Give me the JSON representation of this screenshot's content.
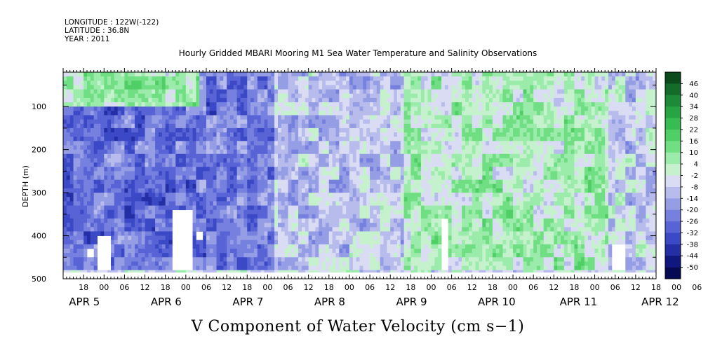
{
  "header": {
    "longitude": "LONGITUDE : 122W(-122)",
    "latitude": "LATITUDE : 36.8N",
    "year": "YEAR : 2011"
  },
  "chart_data": {
    "type": "heatmap",
    "title": "Hourly Gridded MBARI Mooring M1 Sea Water Temperature and Salinity Observations",
    "variable_label": "V Component of Water Velocity (cm s−1)",
    "ylabel": "DEPTH (m)",
    "xlabel": "",
    "y_range": [
      500,
      20
    ],
    "y_ticks": [
      100,
      200,
      300,
      400,
      500
    ],
    "x_range_hours": [
      0,
      174
    ],
    "x_start": "2011-04-05 12:00",
    "x_hour_ticks": [
      "18",
      "00",
      "06",
      "12",
      "18",
      "00",
      "06",
      "12",
      "18",
      "00",
      "06",
      "12",
      "18",
      "00",
      "06",
      "12",
      "18",
      "00",
      "06",
      "12",
      "18",
      "00",
      "06",
      "12",
      "18",
      "00",
      "06",
      "12",
      "18",
      "00",
      "06",
      "12"
    ],
    "x_day_labels": [
      "APR  5",
      "APR  6",
      "APR  7",
      "APR  8",
      "APR  9",
      "APR 10",
      "APR 11",
      "APR 12"
    ],
    "colorbar": {
      "levels": [
        "46",
        "40",
        "34",
        "28",
        "22",
        "16",
        "10",
        "4",
        "-2",
        "-8",
        "-14",
        "-20",
        "-26",
        "-32",
        "-38",
        "-44",
        "-50"
      ],
      "colors": [
        "#0b4a1b",
        "#146b2a",
        "#1c8a36",
        "#27a443",
        "#37bb53",
        "#4fcf66",
        "#70de82",
        "#9bebab",
        "#c5f2cd",
        "#d9dcf3",
        "#b7bcec",
        "#959ee5",
        "#7680de",
        "#5864d5",
        "#3b49c6",
        "#242fa6",
        "#101880",
        "#060a55"
      ],
      "min": -50,
      "max": 52
    },
    "field_description_regions": [
      {
        "t": [
          0,
          40
        ],
        "z": [
          100,
          480
        ],
        "v": -22
      },
      {
        "t": [
          40,
          62
        ],
        "z": [
          20,
          480
        ],
        "v": -20
      },
      {
        "t": [
          62,
          100
        ],
        "z": [
          20,
          480
        ],
        "v": -6
      },
      {
        "t": [
          100,
          160
        ],
        "z": [
          20,
          480
        ],
        "v": 6
      },
      {
        "t": [
          160,
          174
        ],
        "z": [
          20,
          480
        ],
        "v": -4
      }
    ],
    "missing_regions": [
      {
        "t": [
          7,
          9
        ],
        "z": [
          430,
          450
        ]
      },
      {
        "t": [
          10,
          14
        ],
        "z": [
          400,
          480
        ]
      },
      {
        "t": [
          32,
          38
        ],
        "z": [
          340,
          480
        ]
      },
      {
        "t": [
          39,
          41
        ],
        "z": [
          395,
          410
        ]
      },
      {
        "t": [
          111,
          113
        ],
        "z": [
          360,
          480
        ]
      },
      {
        "t": [
          161,
          165
        ],
        "z": [
          425,
          480
        ]
      }
    ]
  }
}
